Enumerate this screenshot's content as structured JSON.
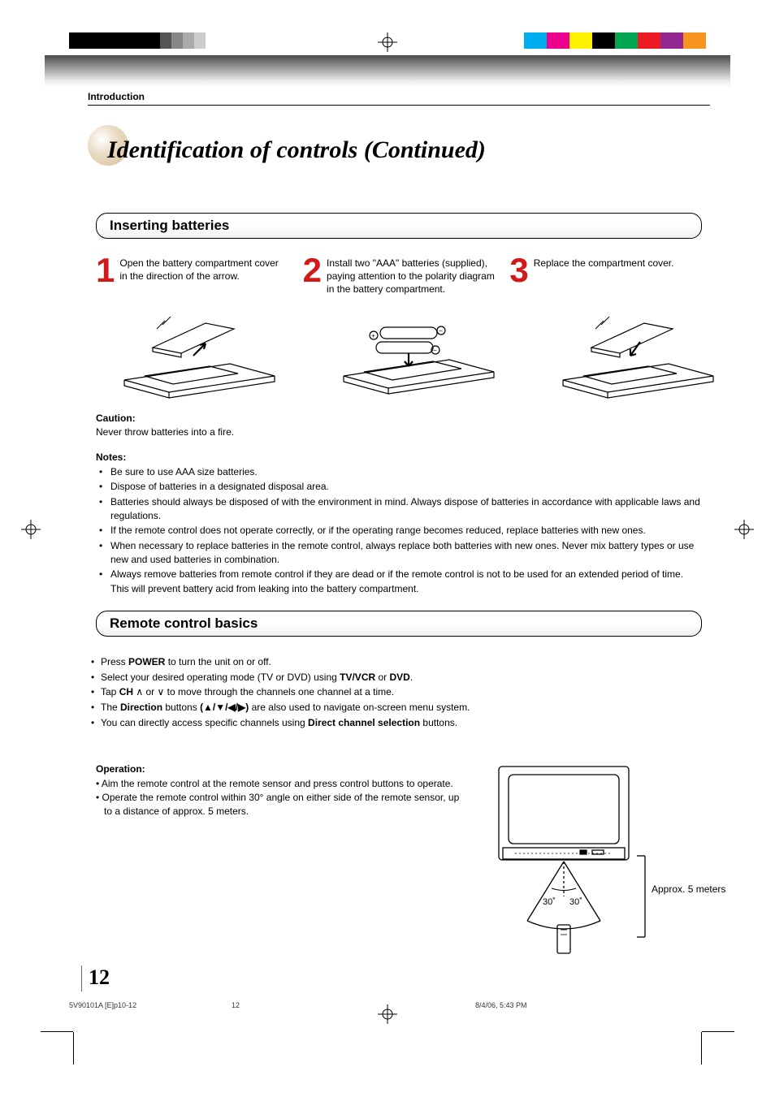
{
  "colorbar": {
    "left": [
      "#000000",
      "#000000",
      "#000000",
      "#000000",
      "#555555",
      "#888888",
      "#aaaaaa",
      "#cccccc"
    ],
    "right": [
      "#00aeef",
      "#ec008c",
      "#fff200",
      "#000000",
      "#00a651",
      "#ed1c24",
      "#92278f",
      "#f7941d"
    ],
    "square_widths_left": [
      28,
      28,
      28,
      28,
      14,
      14,
      14,
      14
    ],
    "square_widths_right": [
      28,
      28,
      28,
      28,
      28,
      28,
      28,
      28
    ]
  },
  "header": {
    "section_label": "Introduction",
    "title": "Identification of controls (Continued)"
  },
  "batteries": {
    "heading": "Inserting batteries",
    "steps": [
      "Open the battery compartment cover in the direction of the arrow.",
      "Install two \"AAA\" batteries (supplied), paying attention to the polarity diagram in the battery compartment.",
      "Replace the compartment cover."
    ],
    "caution_label": "Caution:",
    "caution_text": "Never throw batteries into a fire.",
    "notes_label": "Notes:",
    "notes": [
      "Be sure to use AAA size batteries.",
      "Dispose of batteries in a designated disposal area.",
      "Batteries should always be disposed of with the environment in mind. Always dispose of batteries in accordance with applicable laws and regulations.",
      "If the remote control does not operate correctly, or if the operating range becomes reduced, replace batteries with new ones.",
      "When necessary to replace batteries in the remote control, always replace both batteries with new ones. Never mix battery types or use new and used batteries in combination.",
      "Always remove batteries from remote control if they are dead or if the remote control is not to be used for an extended period of time. This will prevent battery acid from leaking into the battery compartment."
    ]
  },
  "remote": {
    "heading": "Remote control basics",
    "items": {
      "i1a": "Press ",
      "i1b": "POWER",
      "i1c": " to turn the unit on or off.",
      "i2a": "Select your desired operating mode (TV or DVD) using ",
      "i2b": "TV/VCR",
      "i2c": " or ",
      "i2d": "DVD",
      "i2e": ".",
      "i3a": "Tap ",
      "i3b": "CH",
      "i3c": " to move through the channels one channel at a time.",
      "i4a": "The ",
      "i4b": "Direction",
      "i4c": " buttons ",
      "i4d": "(▲/▼/◀/▶)",
      "i4e": " are also used to navigate on-screen menu system.",
      "i5a": "You can directly access specific channels using ",
      "i5b": "Direct channel selection",
      "i5c": " buttons."
    },
    "operation_label": "Operation:",
    "op1": "• Aim the remote control at the remote sensor and press control buttons to operate.",
    "op2": "• Operate the remote control within 30° angle on either side of the remote sensor, up to a distance of approx. 5 meters.",
    "diagram_label": "Approx. 5 meters",
    "angle_left": "30˚",
    "angle_right": "30˚"
  },
  "footer": {
    "page_number": "12",
    "docref": "5V90101A [E]p10-12",
    "page_center": "12",
    "datetime": "8/4/06, 5:43 PM"
  }
}
